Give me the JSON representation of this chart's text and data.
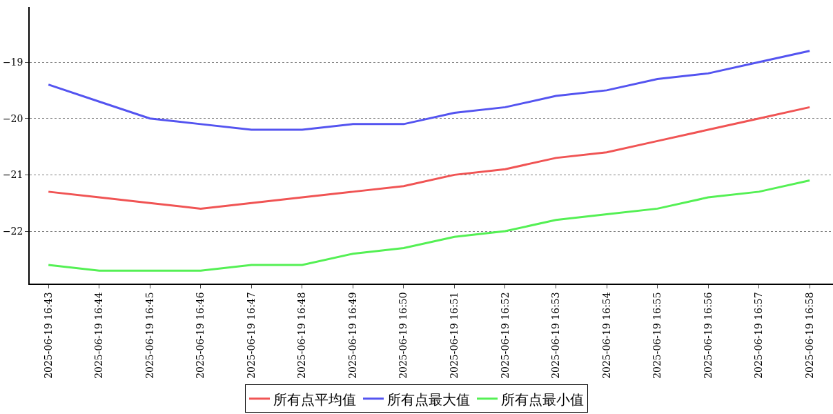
{
  "chart_data": {
    "type": "line",
    "categories": [
      "2025-06-19 16:43",
      "2025-06-19 16:44",
      "2025-06-19 16:45",
      "2025-06-19 16:46",
      "2025-06-19 16:47",
      "2025-06-19 16:48",
      "2025-06-19 16:49",
      "2025-06-19 16:50",
      "2025-06-19 16:51",
      "2025-06-19 16:52",
      "2025-06-19 16:53",
      "2025-06-19 16:54",
      "2025-06-19 16:55",
      "2025-06-19 16:56",
      "2025-06-19 16:57",
      "2025-06-19 16:58"
    ],
    "series": [
      {
        "name": "所有点平均值",
        "color": "#f05454",
        "values": [
          -21.3,
          -21.4,
          -21.5,
          -21.6,
          -21.5,
          -21.4,
          -21.3,
          -21.2,
          -21.0,
          -20.9,
          -20.7,
          -20.6,
          -20.4,
          -20.2,
          -20.0,
          -19.8
        ]
      },
      {
        "name": "所有点最大值",
        "color": "#5454f0",
        "values": [
          -19.4,
          -19.7,
          -20.0,
          -20.1,
          -20.2,
          -20.2,
          -20.1,
          -20.1,
          -19.9,
          -19.8,
          -19.6,
          -19.5,
          -19.3,
          -19.2,
          -19.0,
          -18.8
        ]
      },
      {
        "name": "所有点最小值",
        "color": "#54f054",
        "values": [
          -22.6,
          -22.7,
          -22.7,
          -22.7,
          -22.6,
          -22.6,
          -22.4,
          -22.3,
          -22.1,
          -22.0,
          -21.8,
          -21.7,
          -21.6,
          -21.4,
          -21.3,
          -21.1
        ]
      }
    ],
    "ylim": [
      -22.93,
      -18.02
    ],
    "yticks": [
      {
        "value": -22,
        "label": "−22"
      },
      {
        "value": -21,
        "label": "−21"
      },
      {
        "value": -20,
        "label": "−20"
      },
      {
        "value": -19,
        "label": "−19"
      }
    ],
    "grid": "y",
    "legend": "bottom",
    "marker": "none",
    "line_style": "solid"
  }
}
